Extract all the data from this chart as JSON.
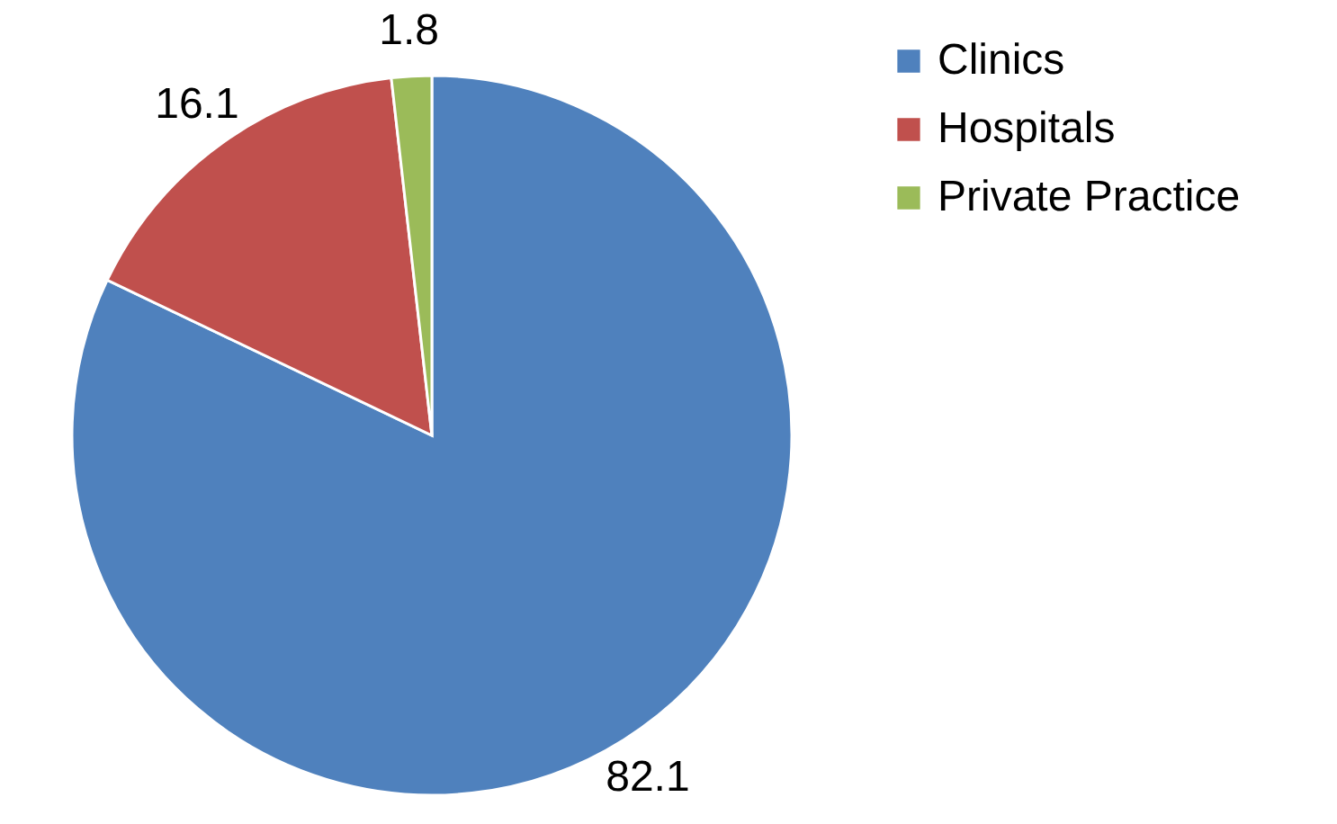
{
  "chart_data": {
    "type": "pie",
    "categories": [
      "Clinics",
      "Hospitals",
      "Private Practice"
    ],
    "values": [
      82.1,
      16.1,
      1.8
    ],
    "colors": [
      "#4f81bd",
      "#c0504d",
      "#9bbb59"
    ],
    "data_labels": true,
    "legend": "right"
  }
}
